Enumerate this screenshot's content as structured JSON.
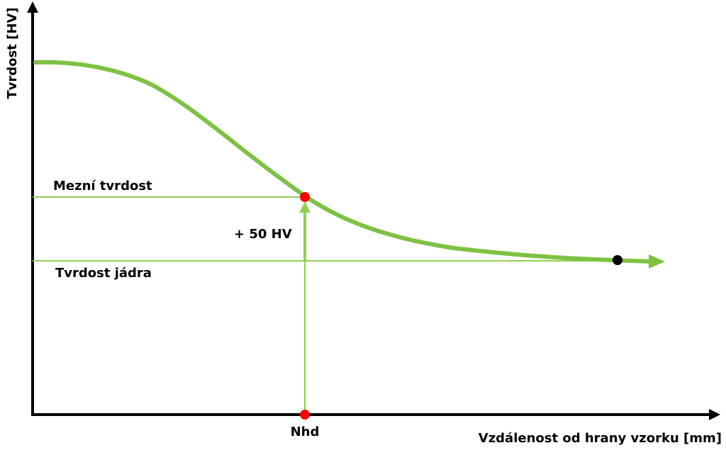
{
  "axes": {
    "y_label": "Tvrdost [HV]",
    "x_label": "Vzdálenost od hrany vzorku [mm]"
  },
  "annotations": {
    "limit_hardness": "Mezní tvrdost",
    "core_hardness": "Tvrdost jádra",
    "offset": "+ 50 HV",
    "depth": "Nhd"
  }
}
